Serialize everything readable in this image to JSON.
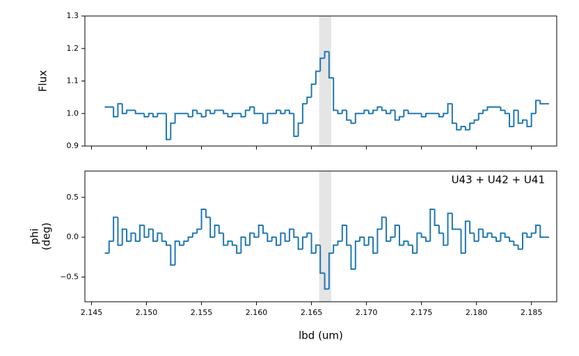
{
  "chart_data": [
    {
      "type": "step",
      "ylabel": "Flux",
      "x": [
        2.1464,
        2.1468,
        2.1472,
        2.1476,
        2.148,
        2.1484,
        2.1488,
        2.1492,
        2.1496,
        2.15,
        2.1504,
        2.1508,
        2.1512,
        2.1516,
        2.152,
        2.1524,
        2.1528,
        2.1532,
        2.1536,
        2.154,
        2.1544,
        2.1548,
        2.1552,
        2.1556,
        2.156,
        2.1564,
        2.1568,
        2.1572,
        2.1576,
        2.158,
        2.1584,
        2.1588,
        2.1592,
        2.1596,
        2.16,
        2.1604,
        2.1608,
        2.1612,
        2.1616,
        2.162,
        2.1624,
        2.1628,
        2.1632,
        2.1636,
        2.164,
        2.1644,
        2.1648,
        2.1652,
        2.1656,
        2.166,
        2.1664,
        2.1668,
        2.1672,
        2.1676,
        2.168,
        2.1684,
        2.1688,
        2.1692,
        2.1696,
        2.17,
        2.1704,
        2.1708,
        2.1712,
        2.1716,
        2.172,
        2.1724,
        2.1728,
        2.1732,
        2.1736,
        2.174,
        2.1744,
        2.1748,
        2.1752,
        2.1756,
        2.176,
        2.1764,
        2.1768,
        2.1772,
        2.1776,
        2.178,
        2.1784,
        2.1788,
        2.1792,
        2.1796,
        2.18,
        2.1804,
        2.1808,
        2.1812,
        2.1816,
        2.182,
        2.1824,
        2.1828,
        2.1832,
        2.1836,
        2.184,
        2.1844,
        2.1848,
        2.1852,
        2.1856,
        2.186,
        2.1864
      ],
      "series": [
        {
          "color": "#1f77b4",
          "values": [
            1.02,
            1.02,
            0.99,
            1.03,
            1.0,
            1.01,
            1.01,
            1.0,
            1.0,
            0.99,
            1.0,
            0.99,
            1.0,
            1.0,
            0.92,
            0.97,
            1.0,
            1.0,
            1.0,
            0.99,
            1.01,
            1.0,
            0.99,
            1.01,
            1.0,
            1.01,
            1.01,
            1.0,
            0.99,
            1.0,
            1.0,
            0.99,
            1.01,
            1.02,
            1.0,
            1.0,
            0.97,
            1.0,
            1.0,
            1.01,
            1.0,
            1.01,
            1.0,
            0.93,
            0.97,
            1.03,
            1.05,
            1.09,
            1.13,
            1.17,
            1.19,
            1.11,
            1.01,
            1.0,
            1.01,
            0.98,
            0.97,
            1.0,
            1.0,
            1.01,
            1.0,
            1.01,
            1.02,
            1.01,
            1.0,
            1.01,
            0.98,
            0.99,
            1.01,
            1.0,
            1.0,
            1.0,
            0.99,
            1.0,
            1.0,
            1.0,
            0.99,
            1.0,
            1.03,
            0.97,
            0.95,
            0.96,
            0.95,
            0.97,
            0.98,
            1.0,
            1.01,
            1.02,
            1.02,
            1.02,
            1.01,
            1.0,
            0.96,
            1.01,
            0.97,
            0.98,
            0.96,
            1.0,
            1.04,
            1.03,
            1.03
          ]
        }
      ],
      "span": [
        2.1657,
        2.1668
      ],
      "span_color": "#e5e5e5",
      "xlim": [
        2.1444,
        2.1873
      ],
      "xticks": [
        2.145,
        2.15,
        2.155,
        2.16,
        2.165,
        2.17,
        2.175,
        2.18,
        2.185
      ],
      "ylim": [
        0.9,
        1.3
      ],
      "yticks": [
        0.9,
        {
          "value": 1,
          "label": "1.0"
        },
        1.1,
        1.2,
        1.3
      ]
    },
    {
      "type": "step",
      "ylabel": [
        "phi",
        "(deg)"
      ],
      "xlabel": "lbd (um)",
      "annotation": "U43 + U42 + U41",
      "x": [
        2.1464,
        2.1468,
        2.1472,
        2.1476,
        2.148,
        2.1484,
        2.1488,
        2.1492,
        2.1496,
        2.15,
        2.1504,
        2.1508,
        2.1512,
        2.1516,
        2.152,
        2.1524,
        2.1528,
        2.1532,
        2.1536,
        2.154,
        2.1544,
        2.1548,
        2.1552,
        2.1556,
        2.156,
        2.1564,
        2.1568,
        2.1572,
        2.1576,
        2.158,
        2.1584,
        2.1588,
        2.1592,
        2.1596,
        2.16,
        2.1604,
        2.1608,
        2.1612,
        2.1616,
        2.162,
        2.1624,
        2.1628,
        2.1632,
        2.1636,
        2.164,
        2.1644,
        2.1648,
        2.1652,
        2.1656,
        2.166,
        2.1664,
        2.1668,
        2.1672,
        2.1676,
        2.168,
        2.1684,
        2.1688,
        2.1692,
        2.1696,
        2.17,
        2.1704,
        2.1708,
        2.1712,
        2.1716,
        2.172,
        2.1724,
        2.1728,
        2.1732,
        2.1736,
        2.174,
        2.1744,
        2.1748,
        2.1752,
        2.1756,
        2.176,
        2.1764,
        2.1768,
        2.1772,
        2.1776,
        2.178,
        2.1784,
        2.1788,
        2.1792,
        2.1796,
        2.18,
        2.1804,
        2.1808,
        2.1812,
        2.1816,
        2.182,
        2.1824,
        2.1828,
        2.1832,
        2.1836,
        2.184,
        2.1844,
        2.1848,
        2.1852,
        2.1856,
        2.186,
        2.1864
      ],
      "series": [
        {
          "color": "#1f77b4",
          "values": [
            -0.2,
            -0.05,
            0.25,
            -0.1,
            0.1,
            -0.05,
            0.05,
            -0.05,
            0.15,
            0.0,
            0.1,
            -0.05,
            0.05,
            -0.05,
            -0.1,
            -0.35,
            -0.05,
            -0.1,
            -0.05,
            0.0,
            0.05,
            0.1,
            0.35,
            0.25,
            0.0,
            0.15,
            0.05,
            -0.1,
            -0.05,
            -0.1,
            -0.2,
            0.0,
            -0.1,
            0.05,
            0.0,
            0.15,
            0.05,
            -0.05,
            0.0,
            -0.1,
            0.05,
            -0.05,
            0.1,
            0.0,
            -0.15,
            0.0,
            0.05,
            -0.2,
            -0.1,
            -0.45,
            -0.65,
            -0.2,
            -0.1,
            -0.05,
            0.15,
            -0.1,
            -0.4,
            -0.05,
            0.0,
            -0.1,
            0.0,
            -0.2,
            0.1,
            0.25,
            -0.05,
            0.0,
            0.15,
            -0.1,
            -0.05,
            -0.1,
            -0.2,
            0.05,
            0.0,
            -0.05,
            0.35,
            0.15,
            0.05,
            -0.1,
            0.3,
            0.1,
            0.1,
            -0.2,
            0.2,
            0.05,
            -0.05,
            0.1,
            0.0,
            0.05,
            0.0,
            -0.05,
            0.05,
            0.0,
            -0.05,
            -0.1,
            -0.15,
            0.05,
            0.0,
            0.05,
            0.15,
            0.0,
            0.0
          ]
        }
      ],
      "span": [
        2.1657,
        2.1668
      ],
      "span_color": "#e5e5e5",
      "xlim": [
        2.1444,
        2.1873
      ],
      "xticks": [
        2.145,
        {
          "value": 2.15,
          "label": "2.150"
        },
        2.155,
        {
          "value": 2.16,
          "label": "2.160"
        },
        2.165,
        {
          "value": 2.17,
          "label": "2.170"
        },
        2.175,
        {
          "value": 2.18,
          "label": "2.180"
        },
        2.185
      ],
      "ylim": [
        -0.81,
        0.83
      ],
      "yticks": [
        {
          "value": -0.5,
          "label": "−0.5"
        },
        {
          "value": 0,
          "label": "0.0"
        },
        0.5
      ]
    }
  ]
}
